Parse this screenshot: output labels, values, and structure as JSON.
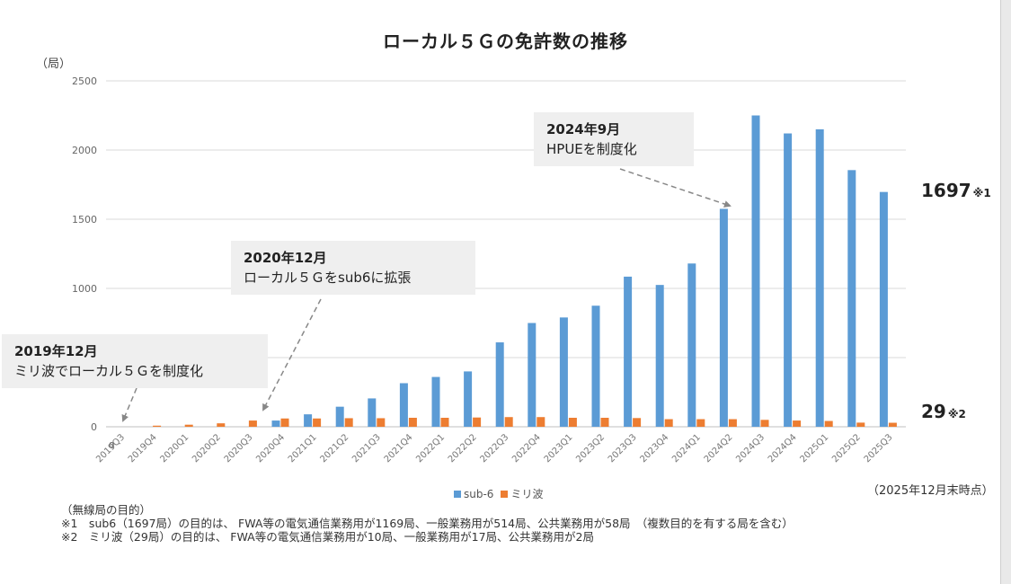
{
  "title": "ローカル５Ｇの免許数の推移",
  "unit_label": "（局）",
  "chart_data": {
    "type": "bar",
    "title": "ローカル５Ｇの免許数の推移",
    "ylabel": "（局）",
    "ylim": [
      0,
      2500
    ],
    "yticks": [
      0,
      500,
      1000,
      1500,
      2000,
      2500
    ],
    "grid": true,
    "legend_position": "bottom",
    "categories": [
      "2019Q3",
      "2019Q4",
      "2020Q1",
      "2020Q2",
      "2020Q3",
      "2020Q4",
      "2021Q1",
      "2021Q2",
      "2021Q3",
      "2021Q4",
      "2022Q1",
      "2022Q2",
      "2022Q3",
      "2022Q4",
      "2023Q1",
      "2023Q2",
      "2023Q3",
      "2023Q4",
      "2024Q1",
      "2024Q2",
      "2024Q3",
      "2024Q4",
      "2025Q1",
      "2025Q2",
      "2025Q3"
    ],
    "series": [
      {
        "name": "sub-6",
        "color": "#5b9bd5",
        "values": [
          0,
          0,
          0,
          0,
          0,
          45,
          90,
          145,
          205,
          315,
          360,
          400,
          610,
          750,
          790,
          875,
          1085,
          1025,
          1180,
          1575,
          2250,
          2120,
          2150,
          1855,
          1697
        ]
      },
      {
        "name": "ミリ波",
        "color": "#ed7d31",
        "values": [
          0,
          8,
          15,
          25,
          45,
          60,
          60,
          62,
          62,
          65,
          65,
          67,
          70,
          70,
          65,
          65,
          63,
          55,
          55,
          55,
          50,
          45,
          42,
          30,
          29
        ]
      }
    ],
    "zero_label": "0"
  },
  "callouts": [
    {
      "date": "2019年12月",
      "text": "ミリ波でローカル５Ｇを制度化"
    },
    {
      "date": "2020年12月",
      "text": "ローカル５Ｇをsub6に拡張"
    },
    {
      "date": "2024年9月",
      "text": "HPUEを制度化"
    }
  ],
  "highlight_values": [
    {
      "value": "1697",
      "note": "※1"
    },
    {
      "value": "29",
      "note": "※2"
    }
  ],
  "as_of": "（2025年12月末時点）",
  "notes": {
    "heading": "（無線局の目的）",
    "lines": [
      "※1　sub6（1697局）の目的は、 FWA等の電気通信業務用が1169局、一般業務用が514局、公共業務用が58局　（複数目的を有する局を含む）",
      "※2　ミリ波（29局）の目的は、 FWA等の電気通信業務用が10局、一般業務用が17局、公共業務用が2局"
    ]
  }
}
